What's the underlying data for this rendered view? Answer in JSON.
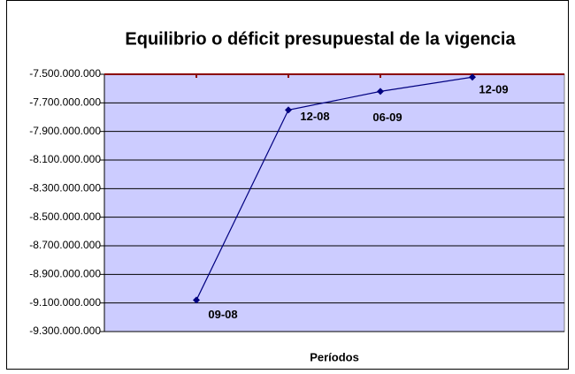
{
  "chart_data": {
    "type": "line",
    "title": "Equilibrio o déficit presupuestal de la vigencia",
    "x_label": "Períodos",
    "categories": [
      "09-08",
      "12-08",
      "06-09",
      "12-09"
    ],
    "series": [
      {
        "name": "Equilibrio o déficit",
        "color": "#000080",
        "values": [
          -9080000000,
          -7750000000,
          -7620000000,
          -7520000000
        ]
      }
    ],
    "ylim": [
      -9300000000,
      -7500000000
    ],
    "yticks": [
      {
        "value": -9300000000,
        "label": "-9.300.000.000"
      },
      {
        "value": -9100000000,
        "label": "-9.100.000.000"
      },
      {
        "value": -8900000000,
        "label": "-8.900.000.000"
      },
      {
        "value": -8700000000,
        "label": "-8.700.000.000"
      },
      {
        "value": -8500000000,
        "label": "-8.500.000.000"
      },
      {
        "value": -8300000000,
        "label": "-8.300.000.000"
      },
      {
        "value": -8100000000,
        "label": "-8.100.000.000"
      },
      {
        "value": -7900000000,
        "label": "-7.900.000.000"
      },
      {
        "value": -7700000000,
        "label": "-7.700.000.000"
      },
      {
        "value": -7500000000,
        "label": "-7.500.000.000"
      }
    ],
    "grid": true,
    "plot_color": "#ccccff",
    "axis_color": "#8b0000"
  }
}
